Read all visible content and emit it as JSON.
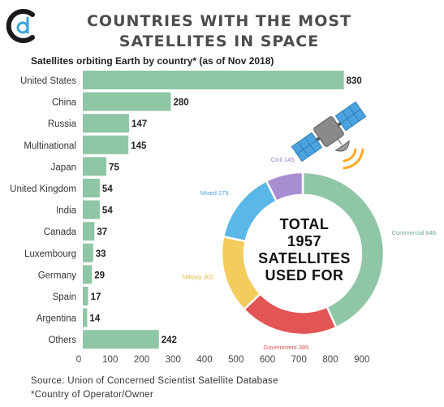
{
  "title_line1": "COUNTRIES WITH THE MOST",
  "title_line2": "SATELLITES IN SPACE",
  "source_line1": "Source: Union of Concerned Scientist Satellite Database",
  "source_line2": "*Country of Operator/Owner",
  "center_text": [
    "TOTAL",
    "1957",
    "SATELLITES",
    "USED FOR"
  ],
  "colors": {
    "bar": "#8fc6a6",
    "logo_dark": "#1a1a1a",
    "logo_blue": "#3aa3d8",
    "satellite_panel": "#4aa3df",
    "satellite_body": "#8a8a8a",
    "signal": "#f7a928"
  },
  "chart_data": [
    {
      "type": "bar",
      "title": "Satellites orbiting Earth by country* (as of Nov 2018)",
      "xlabel": "",
      "ylabel": "",
      "categories": [
        "United States",
        "China",
        "Russia",
        "Multinational",
        "Japan",
        "United Kingdom",
        "India",
        "Canada",
        "Luxembourg",
        "Germany",
        "Spain",
        "Argentina",
        "Others"
      ],
      "values": [
        830,
        280,
        147,
        145,
        75,
        54,
        54,
        37,
        33,
        29,
        17,
        14,
        242
      ],
      "xlim": [
        0,
        900
      ],
      "xticks": [
        0,
        100,
        200,
        300,
        400,
        500,
        600,
        700,
        800,
        900
      ],
      "grid": false,
      "orientation": "horizontal"
    },
    {
      "type": "pie",
      "subtype": "donut",
      "categories": [
        "Commercial",
        "Government",
        "Military",
        "Mixed",
        "Civil"
      ],
      "values": [
        846,
        385,
        302,
        279,
        145
      ],
      "labels": [
        "Commercial 846",
        "Government 385",
        "Military 302",
        "Mixed 279",
        "Civil 145"
      ],
      "colors": [
        "#8fc6a6",
        "#e35454",
        "#f2cc5c",
        "#5ab7e8",
        "#a88ed0"
      ],
      "label_colors": [
        "#6fa88a",
        "#e35454",
        "#e8b43a",
        "#4aa3df",
        "#9c7ec8"
      ]
    }
  ]
}
